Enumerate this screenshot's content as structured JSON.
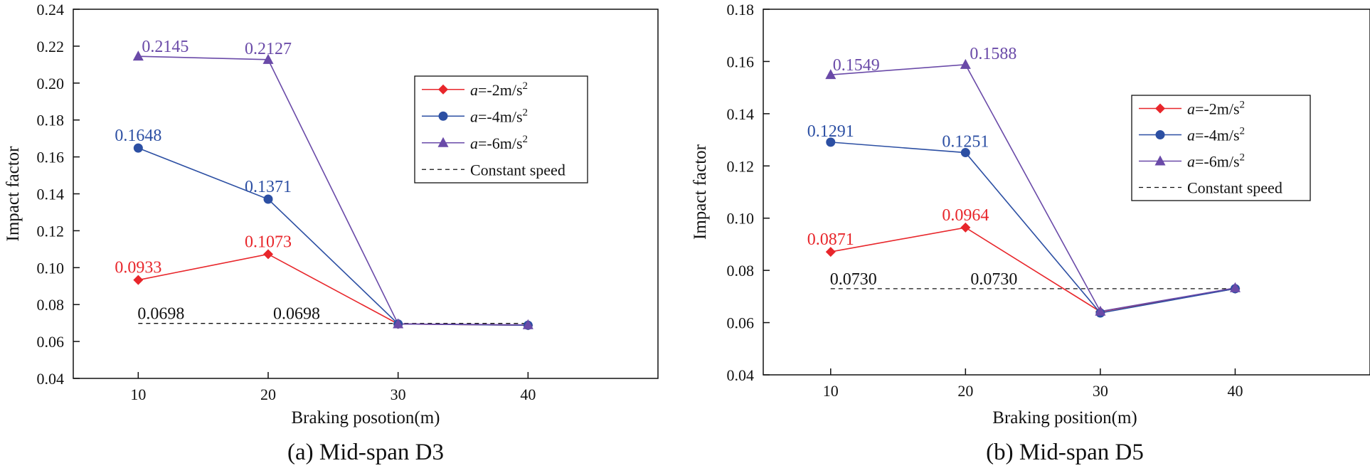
{
  "chart_data": [
    {
      "type": "line",
      "panel": "a",
      "caption": "(a) Mid-span D3",
      "xlabel": "Braking posotion(m)",
      "ylabel": "Impact factor",
      "x": [
        10,
        20,
        30,
        40
      ],
      "xticks": [
        "10",
        "20",
        "30",
        "40"
      ],
      "xlim": [
        5,
        50
      ],
      "ylim": [
        0.04,
        0.24
      ],
      "yticks": [
        "0.04",
        "0.06",
        "0.08",
        "0.10",
        "0.12",
        "0.14",
        "0.16",
        "0.18",
        "0.20",
        "0.22",
        "0.24"
      ],
      "grid": false,
      "legend_position": "top-right",
      "series": [
        {
          "name": "a=-2m/s2",
          "legend_accel": "a",
          "legend_value": "=-2m/s",
          "legend_exp": "2",
          "marker": "diamond",
          "color": "#e8262b",
          "values": [
            0.0933,
            0.1073,
            0.0695,
            0.0688
          ],
          "labels": [
            "0.0933",
            "0.1073",
            null,
            null
          ]
        },
        {
          "name": "a=-4m/s2",
          "legend_accel": "a",
          "legend_value": "=-4m/s",
          "legend_exp": "2",
          "marker": "circle",
          "color": "#2c4fa3",
          "values": [
            0.1648,
            0.1371,
            0.0695,
            0.0688
          ],
          "labels": [
            "0.1648",
            "0.1371",
            null,
            null
          ]
        },
        {
          "name": "a=-6m/s2",
          "legend_accel": "a",
          "legend_value": "=-6m/s",
          "legend_exp": "2",
          "marker": "triangle",
          "color": "#6a4aa8",
          "values": [
            0.2145,
            0.2127,
            0.0695,
            0.069
          ],
          "labels": [
            "0.2145",
            "0.2127",
            null,
            null
          ]
        }
      ],
      "constant_speed": {
        "name": "Constant speed",
        "value": 0.0698,
        "x_range": [
          10,
          40
        ],
        "labels": [
          "0.0698",
          "0.0698"
        ]
      }
    },
    {
      "type": "line",
      "panel": "b",
      "caption": "(b) Mid-span D5",
      "xlabel": "Braking position(m)",
      "ylabel": "Impact factor",
      "x": [
        10,
        20,
        30,
        40
      ],
      "xticks": [
        "10",
        "20",
        "30",
        "40"
      ],
      "xlim": [
        5,
        50
      ],
      "ylim": [
        0.04,
        0.18
      ],
      "yticks": [
        "0.04",
        "0.06",
        "0.08",
        "0.10",
        "0.12",
        "0.14",
        "0.16",
        "0.18"
      ],
      "grid": false,
      "legend_position": "top-right",
      "series": [
        {
          "name": "a=-2m/s2",
          "legend_accel": "a",
          "legend_value": "=-2m/s",
          "legend_exp": "2",
          "marker": "diamond",
          "color": "#e8262b",
          "values": [
            0.0871,
            0.0964,
            0.0642,
            0.073
          ],
          "labels": [
            "0.0871",
            "0.0964",
            null,
            null
          ]
        },
        {
          "name": "a=-4m/s2",
          "legend_accel": "a",
          "legend_value": "=-4m/s",
          "legend_exp": "2",
          "marker": "circle",
          "color": "#2c4fa3",
          "values": [
            0.1291,
            0.1251,
            0.0637,
            0.073
          ],
          "labels": [
            "0.1291",
            "0.1251",
            null,
            null
          ]
        },
        {
          "name": "a=-6m/s2",
          "legend_accel": "a",
          "legend_value": "=-6m/s",
          "legend_exp": "2",
          "marker": "triangle",
          "color": "#6a4aa8",
          "values": [
            0.1549,
            0.1588,
            0.0643,
            0.0733
          ],
          "labels": [
            "0.1549",
            "0.1588",
            null,
            null
          ]
        }
      ],
      "constant_speed": {
        "name": "Constant speed",
        "value": 0.073,
        "x_range": [
          10,
          40
        ],
        "labels": [
          "0.0730",
          "0.0730"
        ]
      }
    }
  ]
}
